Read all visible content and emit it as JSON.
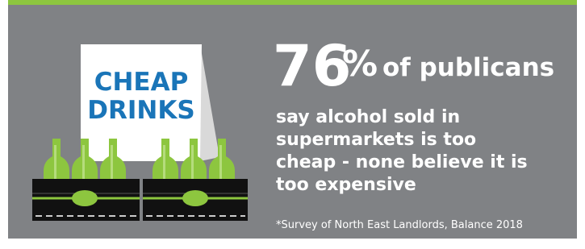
{
  "sign": {
    "line1": "CHEAP",
    "line2": "DRINKS"
  },
  "headline": {
    "percent": 76,
    "symbol": "%",
    "rest": "of publicans"
  },
  "body": [
    "say alcohol sold in",
    "supermarkets is too",
    "cheap - none believe it is",
    "too expensive"
  ],
  "footnote": "*Survey of North East Landlords, Balance 2018"
}
